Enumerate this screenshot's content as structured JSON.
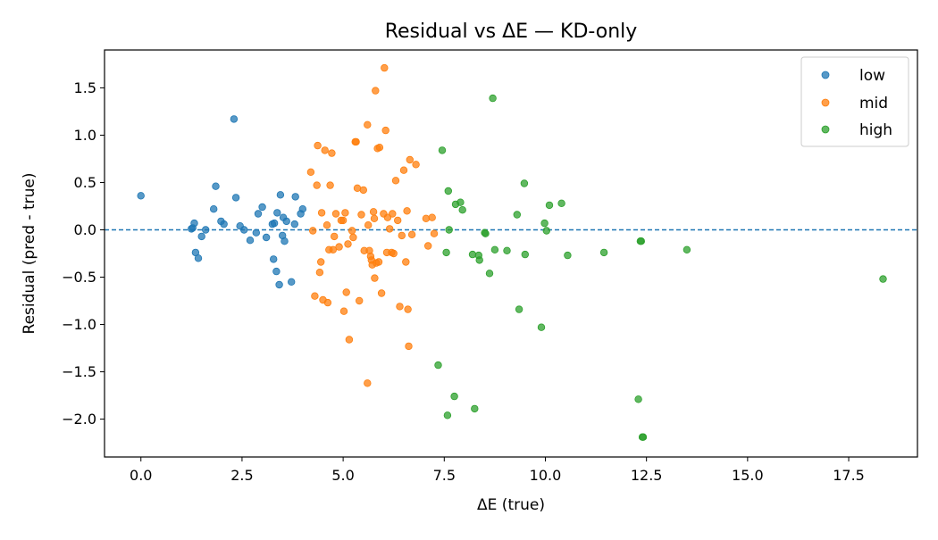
{
  "chart_data": {
    "type": "scatter",
    "title": "Residual vs ΔE — KD-only",
    "xlabel": "ΔE (true)",
    "ylabel": "Residual (pred - true)",
    "xlim": [
      -0.9,
      19.2
    ],
    "ylim": [
      -2.4,
      1.9
    ],
    "xticks": [
      "0.0",
      "2.5",
      "5.0",
      "7.5",
      "10.0",
      "12.5",
      "15.0",
      "17.5"
    ],
    "xtick_values": [
      0,
      2.5,
      5,
      7.5,
      10,
      12.5,
      15,
      17.5
    ],
    "yticks": [
      "1.5",
      "1.0",
      "0.5",
      "0.0",
      "−0.5",
      "−1.0",
      "−1.5",
      "−2.0"
    ],
    "ytick_values": [
      1.5,
      1.0,
      0.5,
      0.0,
      -0.5,
      -1.0,
      -1.5,
      -2.0
    ],
    "reference_line": {
      "y": 0,
      "style": "dashed",
      "color": "#1f77b4"
    },
    "grid": false,
    "legend_position": "top-right",
    "series": [
      {
        "name": "low",
        "color": "#1f77b4",
        "points": [
          [
            0.0,
            0.36
          ],
          [
            1.25,
            0.01
          ],
          [
            1.28,
            0.02
          ],
          [
            1.32,
            0.07
          ],
          [
            1.35,
            -0.24
          ],
          [
            1.42,
            -0.3
          ],
          [
            1.5,
            -0.07
          ],
          [
            1.6,
            0.0
          ],
          [
            1.8,
            0.22
          ],
          [
            1.85,
            0.46
          ],
          [
            1.98,
            0.09
          ],
          [
            2.05,
            0.06
          ],
          [
            2.3,
            1.17
          ],
          [
            2.35,
            0.34
          ],
          [
            2.45,
            0.04
          ],
          [
            2.55,
            0.0
          ],
          [
            2.7,
            -0.11
          ],
          [
            2.85,
            -0.03
          ],
          [
            2.9,
            0.17
          ],
          [
            3.0,
            0.24
          ],
          [
            3.1,
            -0.08
          ],
          [
            3.25,
            0.06
          ],
          [
            3.28,
            -0.31
          ],
          [
            3.3,
            0.07
          ],
          [
            3.35,
            -0.44
          ],
          [
            3.37,
            0.18
          ],
          [
            3.42,
            -0.58
          ],
          [
            3.45,
            0.37
          ],
          [
            3.5,
            -0.06
          ],
          [
            3.52,
            0.13
          ],
          [
            3.55,
            -0.12
          ],
          [
            3.6,
            0.09
          ],
          [
            3.72,
            -0.55
          ],
          [
            3.8,
            0.06
          ],
          [
            3.82,
            0.35
          ],
          [
            3.95,
            0.17
          ],
          [
            4.0,
            0.22
          ]
        ]
      },
      {
        "name": "mid",
        "color": "#ff7f0e",
        "points": [
          [
            4.2,
            0.61
          ],
          [
            4.25,
            -0.01
          ],
          [
            4.3,
            -0.7
          ],
          [
            4.35,
            0.47
          ],
          [
            4.37,
            0.89
          ],
          [
            4.42,
            -0.45
          ],
          [
            4.45,
            -0.34
          ],
          [
            4.47,
            0.18
          ],
          [
            4.5,
            -0.74
          ],
          [
            4.55,
            0.84
          ],
          [
            4.6,
            0.05
          ],
          [
            4.62,
            -0.77
          ],
          [
            4.65,
            -0.21
          ],
          [
            4.68,
            0.47
          ],
          [
            4.72,
            0.81
          ],
          [
            4.75,
            -0.21
          ],
          [
            4.78,
            -0.07
          ],
          [
            4.82,
            0.17
          ],
          [
            4.9,
            -0.18
          ],
          [
            4.95,
            0.1
          ],
          [
            5.0,
            0.1
          ],
          [
            5.02,
            -0.86
          ],
          [
            5.05,
            0.18
          ],
          [
            5.08,
            -0.66
          ],
          [
            5.12,
            -0.15
          ],
          [
            5.15,
            -1.16
          ],
          [
            5.22,
            -0.01
          ],
          [
            5.25,
            -0.08
          ],
          [
            5.3,
            0.93
          ],
          [
            5.32,
            0.93
          ],
          [
            5.35,
            0.44
          ],
          [
            5.4,
            -0.75
          ],
          [
            5.45,
            0.16
          ],
          [
            5.5,
            0.42
          ],
          [
            5.52,
            -0.22
          ],
          [
            5.6,
            1.11
          ],
          [
            5.62,
            0.05
          ],
          [
            5.65,
            -0.22
          ],
          [
            5.68,
            -0.28
          ],
          [
            5.7,
            -0.32
          ],
          [
            5.72,
            -0.37
          ],
          [
            5.75,
            0.19
          ],
          [
            5.77,
            0.12
          ],
          [
            5.78,
            -0.51
          ],
          [
            5.8,
            1.47
          ],
          [
            5.82,
            -0.35
          ],
          [
            5.85,
            0.86
          ],
          [
            5.88,
            -0.34
          ],
          [
            5.9,
            0.87
          ],
          [
            5.95,
            -0.67
          ],
          [
            6.0,
            0.17
          ],
          [
            6.02,
            1.71
          ],
          [
            6.05,
            1.05
          ],
          [
            6.08,
            -0.24
          ],
          [
            6.1,
            0.13
          ],
          [
            6.15,
            0.01
          ],
          [
            6.2,
            -0.24
          ],
          [
            6.22,
            0.17
          ],
          [
            6.25,
            -0.25
          ],
          [
            6.3,
            0.52
          ],
          [
            6.35,
            0.1
          ],
          [
            6.4,
            -0.81
          ],
          [
            6.45,
            -0.06
          ],
          [
            6.5,
            0.63
          ],
          [
            6.55,
            -0.34
          ],
          [
            6.58,
            0.2
          ],
          [
            6.6,
            -0.84
          ],
          [
            6.62,
            -1.23
          ],
          [
            6.65,
            0.74
          ],
          [
            6.7,
            -0.05
          ],
          [
            6.8,
            0.69
          ],
          [
            7.05,
            0.12
          ],
          [
            7.1,
            -0.17
          ],
          [
            7.2,
            0.13
          ],
          [
            7.25,
            -0.04
          ],
          [
            5.6,
            -1.62
          ]
        ]
      },
      {
        "name": "high",
        "color": "#2ca02c",
        "points": [
          [
            7.35,
            -1.43
          ],
          [
            7.45,
            0.84
          ],
          [
            7.55,
            -0.24
          ],
          [
            7.6,
            0.41
          ],
          [
            7.62,
            0.0
          ],
          [
            7.58,
            -1.96
          ],
          [
            7.75,
            -1.76
          ],
          [
            7.78,
            0.27
          ],
          [
            7.9,
            0.29
          ],
          [
            7.95,
            0.21
          ],
          [
            8.2,
            -0.26
          ],
          [
            8.25,
            -1.89
          ],
          [
            8.35,
            -0.27
          ],
          [
            8.37,
            -0.32
          ],
          [
            8.5,
            -0.03
          ],
          [
            8.52,
            -0.04
          ],
          [
            8.62,
            -0.46
          ],
          [
            8.7,
            1.39
          ],
          [
            8.75,
            -0.21
          ],
          [
            9.05,
            -0.22
          ],
          [
            9.3,
            0.16
          ],
          [
            9.35,
            -0.84
          ],
          [
            9.48,
            0.49
          ],
          [
            9.5,
            -0.26
          ],
          [
            9.9,
            -1.03
          ],
          [
            9.98,
            0.07
          ],
          [
            10.03,
            -0.01
          ],
          [
            10.1,
            0.26
          ],
          [
            10.4,
            0.28
          ],
          [
            10.55,
            -0.27
          ],
          [
            11.45,
            -0.24
          ],
          [
            12.3,
            -1.79
          ],
          [
            12.35,
            -0.12
          ],
          [
            12.37,
            -0.12
          ],
          [
            12.4,
            -2.19
          ],
          [
            12.42,
            -2.19
          ],
          [
            13.5,
            -0.21
          ],
          [
            18.35,
            -0.52
          ]
        ]
      }
    ]
  }
}
